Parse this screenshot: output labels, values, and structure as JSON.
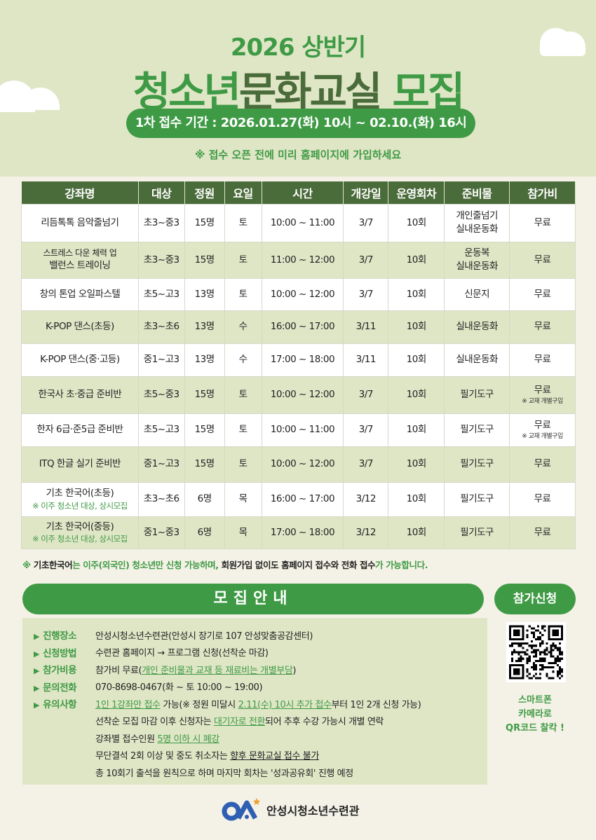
{
  "header": {
    "subtitle": "2026 상반기",
    "title_a": "청소년",
    "title_b": "문화교실",
    "title_c": " 모집",
    "period": "1차 접수 기간 : 2026.01.27(화) 10시 ~ 02.10.(화) 16시",
    "tip": "※ 접수 오픈 전에 미리 홈페이지에 가입하세요"
  },
  "table": {
    "headers": [
      "강좌명",
      "대상",
      "정원",
      "요일",
      "시간",
      "개강일",
      "운영회차",
      "준비물",
      "참가비"
    ],
    "rows": [
      {
        "name": "리듬톡톡 음악줄넘기",
        "target": "초3~중3",
        "cap": "15명",
        "day": "토",
        "time": "10:00 ~ 11:00",
        "start": "3/7",
        "sessions": "10회",
        "supplies": "개인줄넘기",
        "supplies2": "실내운동화",
        "fee": "무료"
      },
      {
        "name_small": "스트레스 다운 체력 업",
        "name": "밸런스 트레이닝",
        "target": "초3~중3",
        "cap": "15명",
        "day": "토",
        "time": "11:00 ~ 12:00",
        "start": "3/7",
        "sessions": "10회",
        "supplies": "운동복",
        "supplies2": "실내운동화",
        "fee": "무료"
      },
      {
        "name": "창의 톤업 오일파스텔",
        "target": "초5~고3",
        "cap": "13명",
        "day": "토",
        "time": "10:00 ~ 12:00",
        "start": "3/7",
        "sessions": "10회",
        "supplies": "신문지",
        "fee": "무료"
      },
      {
        "name": "K-POP 댄스(초등)",
        "target": "초3~초6",
        "cap": "13명",
        "day": "수",
        "time": "16:00 ~ 17:00",
        "start": "3/11",
        "sessions": "10회",
        "supplies": "실내운동화",
        "fee": "무료"
      },
      {
        "name": "K-POP 댄스(중·고등)",
        "target": "중1~고3",
        "cap": "13명",
        "day": "수",
        "time": "17:00 ~ 18:00",
        "start": "3/11",
        "sessions": "10회",
        "supplies": "실내운동화",
        "fee": "무료"
      },
      {
        "name": "한국사 초·중급 준비반",
        "target": "초5~중3",
        "cap": "15명",
        "day": "토",
        "time": "10:00 ~ 12:00",
        "start": "3/7",
        "sessions": "10회",
        "supplies": "필기도구",
        "fee": "무료",
        "fee_note": "※ 교재 개별구입"
      },
      {
        "name": "한자 6급·준5급 준비반",
        "target": "초5~고3",
        "cap": "15명",
        "day": "토",
        "time": "10:00 ~ 11:00",
        "start": "3/7",
        "sessions": "10회",
        "supplies": "필기도구",
        "fee": "무료",
        "fee_note": "※ 교재 개별구입"
      },
      {
        "name": "ITQ 한글 실기 준비반",
        "target": "중1~고3",
        "cap": "15명",
        "day": "토",
        "time": "10:00 ~ 12:00",
        "start": "3/7",
        "sessions": "10회",
        "supplies": "필기도구",
        "fee": "무료"
      },
      {
        "name": "기초 한국어(초등)",
        "name_note": "※ 이주 청소년 대상, 상시모집",
        "target": "초3~초6",
        "cap": "6명",
        "day": "목",
        "time": "16:00 ~ 17:00",
        "start": "3/12",
        "sessions": "10회",
        "supplies": "필기도구",
        "fee": "무료"
      },
      {
        "name": "기초 한국어(중등)",
        "name_note": "※ 이주 청소년 대상, 상시모집",
        "target": "중1~중3",
        "cap": "6명",
        "day": "목",
        "time": "17:00 ~ 18:00",
        "start": "3/12",
        "sessions": "10회",
        "supplies": "필기도구",
        "fee": "무료"
      }
    ]
  },
  "notice": [
    {
      "t": "※ ",
      "g": true
    },
    {
      "t": "기초한국어",
      "g": false
    },
    {
      "t": "는 이주(외국인) 청소년만 신청 가능하며, ",
      "g": true
    },
    {
      "t": "회원가입 없이도 홈페이지 접수와 전화 접수",
      "g": false
    },
    {
      "t": "가 가능합니다.",
      "g": true
    }
  ],
  "info": {
    "title": "모집안내",
    "apply_label": "참가신청",
    "qr_text": [
      "스마트폰",
      "카메라로",
      "QR코드 찰칵 !"
    ],
    "items": [
      {
        "label": "진행장소",
        "segs": [
          {
            "t": "안성시청소년수련관(안성시 장기로 107 안성맞춤공감센터)"
          }
        ]
      },
      {
        "label": "신청방법",
        "segs": [
          {
            "t": "수련관 홈페이지 → 프로그램 신청(선착순 마감)"
          }
        ]
      },
      {
        "label": "참가비용",
        "segs": [
          {
            "t": "참가비 무료("
          },
          {
            "t": "개인 준비물과 교재 등 재료비는 개별부담",
            "s": "u"
          },
          {
            "t": ")"
          }
        ]
      },
      {
        "label": "문의전화",
        "segs": [
          {
            "t": "070-8698-0467(화 ~ 토 10:00 ~ 19:00)"
          }
        ]
      },
      {
        "label": "유의사항",
        "segs": [
          {
            "t": "1인 1강좌만 접수",
            "s": "u"
          },
          {
            "t": " 가능(※  정원 미달시 "
          },
          {
            "t": "2.11(수) 10시 추가 접수",
            "s": "u"
          },
          {
            "t": "부터 1인 2개 신청 가능)"
          }
        ]
      },
      {
        "label": "",
        "segs": [
          {
            "t": "선착순 모집 마감 이후 신청자는 "
          },
          {
            "t": "대기자로 전환",
            "s": "u"
          },
          {
            "t": "되어 추후 수강 가능시 개별 연락"
          }
        ]
      },
      {
        "label": "",
        "segs": [
          {
            "t": "강좌별 접수인원 "
          },
          {
            "t": "5명 이하 시 폐강",
            "s": "u"
          }
        ]
      },
      {
        "label": "",
        "segs": [
          {
            "t": "무단결석 2회 이상 및 중도 취소자는 "
          },
          {
            "t": "향후 문화교실 접수 불가",
            "s": "ud"
          }
        ]
      },
      {
        "label": "",
        "segs": [
          {
            "t": "총 10회기 출석을 원칙으로 하며 마지막 회차는 '성과공유회' 진행 예정"
          }
        ]
      }
    ]
  },
  "footer": {
    "org": "안성시청소년수련관"
  },
  "colors": {
    "green": "#3f9a45",
    "dark_green": "#4a6b3a",
    "light_green": "#dfe6c6",
    "bg": "#f4f2e6",
    "logo_blue": "#2f5fb3",
    "logo_star": "#f0a030"
  }
}
